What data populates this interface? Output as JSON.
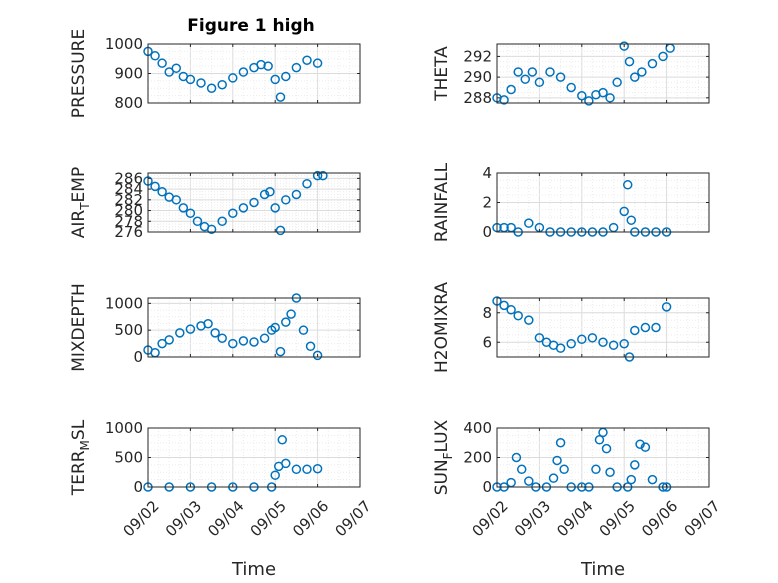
{
  "figure": {
    "title": "Figure 1 high"
  },
  "marker_color": "#0072BD",
  "chart_data": [
    {
      "type": "scatter",
      "ylabel": "PRESSURE",
      "xlabel": "",
      "ylim": [
        800,
        1000
      ],
      "yticks": [
        "800",
        "900",
        "1000"
      ],
      "grid": true,
      "show_xticks": false,
      "x": [
        "09/02 00:00",
        "09/02 04:00",
        "09/02 08:00",
        "09/02 12:00",
        "09/02 16:00",
        "09/02 20:00",
        "09/03 00:00",
        "09/03 06:00",
        "09/03 12:00",
        "09/03 18:00",
        "09/04 00:00",
        "09/04 06:00",
        "09/04 12:00",
        "09/04 16:00",
        "09/04 20:00",
        "09/05 00:00",
        "09/05 03:00",
        "09/05 06:00",
        "09/05 12:00",
        "09/05 18:00",
        "09/06 00:00"
      ],
      "y": [
        975,
        960,
        935,
        905,
        918,
        890,
        880,
        868,
        850,
        862,
        885,
        905,
        920,
        930,
        925,
        880,
        820,
        890,
        920,
        945,
        935
      ]
    },
    {
      "type": "scatter",
      "ylabel": "THETA",
      "xlabel": "",
      "ylim": [
        287.5,
        293.2
      ],
      "yticks": [
        "288",
        "290",
        "292"
      ],
      "grid": true,
      "show_xticks": false,
      "x": [
        "09/02 00:00",
        "09/02 04:00",
        "09/02 08:00",
        "09/02 12:00",
        "09/02 16:00",
        "09/02 20:00",
        "09/03 00:00",
        "09/03 06:00",
        "09/03 12:00",
        "09/03 18:00",
        "09/04 00:00",
        "09/04 04:00",
        "09/04 08:00",
        "09/04 12:00",
        "09/04 16:00",
        "09/04 20:00",
        "09/05 00:00",
        "09/05 03:00",
        "09/05 06:00",
        "09/05 10:00",
        "09/05 16:00",
        "09/05 22:00",
        "09/06 02:00"
      ],
      "y": [
        288.0,
        287.8,
        288.8,
        290.5,
        289.8,
        290.5,
        289.5,
        290.5,
        290.0,
        289.0,
        288.2,
        287.7,
        288.3,
        288.5,
        288.0,
        289.5,
        293.0,
        291.5,
        290.0,
        290.5,
        291.3,
        292.0,
        292.8
      ]
    },
    {
      "type": "scatter",
      "ylabel": "AIR_TEMP",
      "xlabel": "",
      "ylim": [
        276,
        287
      ],
      "yticks": [
        "276",
        "278",
        "280",
        "282",
        "284",
        "286"
      ],
      "grid": true,
      "show_xticks": false,
      "x": [
        "09/02 00:00",
        "09/02 04:00",
        "09/02 08:00",
        "09/02 12:00",
        "09/02 16:00",
        "09/02 20:00",
        "09/03 00:00",
        "09/03 04:00",
        "09/03 08:00",
        "09/03 12:00",
        "09/03 18:00",
        "09/04 00:00",
        "09/04 06:00",
        "09/04 12:00",
        "09/04 18:00",
        "09/04 21:00",
        "09/05 00:00",
        "09/05 03:00",
        "09/05 06:00",
        "09/05 12:00",
        "09/05 18:00",
        "09/06 00:00",
        "09/06 03:00"
      ],
      "y": [
        285.5,
        284.5,
        283.5,
        282.5,
        282.0,
        280.5,
        279.5,
        278.0,
        277.0,
        276.5,
        278.0,
        279.5,
        280.5,
        281.5,
        283.0,
        283.5,
        280.5,
        276.3,
        282.0,
        283.0,
        285.0,
        286.5,
        286.5
      ]
    },
    {
      "type": "scatter",
      "ylabel": "RAINFALL",
      "xlabel": "",
      "ylim": [
        0,
        4
      ],
      "yticks": [
        "0",
        "2",
        "4"
      ],
      "grid": true,
      "show_xticks": false,
      "x": [
        "09/02 00:00",
        "09/02 04:00",
        "09/02 08:00",
        "09/02 12:00",
        "09/02 18:00",
        "09/03 00:00",
        "09/03 06:00",
        "09/03 12:00",
        "09/03 18:00",
        "09/04 00:00",
        "09/04 06:00",
        "09/04 12:00",
        "09/04 18:00",
        "09/05 00:00",
        "09/05 02:00",
        "09/05 04:00",
        "09/05 06:00",
        "09/05 12:00",
        "09/05 18:00",
        "09/06 00:00"
      ],
      "y": [
        0.3,
        0.3,
        0.3,
        0.0,
        0.6,
        0.3,
        0.0,
        0.0,
        0.0,
        0.0,
        0.0,
        0.0,
        0.3,
        1.4,
        3.2,
        0.8,
        0.0,
        0.0,
        0.0,
        0.0
      ]
    },
    {
      "type": "scatter",
      "ylabel": "MIXDEPTH",
      "xlabel": "",
      "ylim": [
        0,
        1100
      ],
      "yticks": [
        "0",
        "500",
        "1000"
      ],
      "grid": true,
      "show_xticks": false,
      "x": [
        "09/02 00:00",
        "09/02 04:00",
        "09/02 08:00",
        "09/02 12:00",
        "09/02 18:00",
        "09/03 00:00",
        "09/03 06:00",
        "09/03 10:00",
        "09/03 14:00",
        "09/03 18:00",
        "09/04 00:00",
        "09/04 06:00",
        "09/04 12:00",
        "09/04 18:00",
        "09/04 22:00",
        "09/05 00:00",
        "09/05 03:00",
        "09/05 06:00",
        "09/05 09:00",
        "09/05 12:00",
        "09/05 16:00",
        "09/05 20:00",
        "09/06 00:00"
      ],
      "y": [
        130,
        80,
        250,
        320,
        450,
        520,
        580,
        620,
        450,
        350,
        250,
        300,
        280,
        350,
        500,
        550,
        100,
        650,
        800,
        1100,
        500,
        200,
        30
      ]
    },
    {
      "type": "scatter",
      "ylabel": "H2OMIXRA",
      "xlabel": "",
      "ylim": [
        5,
        9
      ],
      "yticks": [
        "6",
        "8"
      ],
      "grid": true,
      "show_xticks": false,
      "x": [
        "09/02 00:00",
        "09/02 04:00",
        "09/02 08:00",
        "09/02 12:00",
        "09/02 18:00",
        "09/03 00:00",
        "09/03 04:00",
        "09/03 08:00",
        "09/03 12:00",
        "09/03 18:00",
        "09/04 00:00",
        "09/04 06:00",
        "09/04 12:00",
        "09/04 18:00",
        "09/05 00:00",
        "09/05 03:00",
        "09/05 06:00",
        "09/05 12:00",
        "09/05 18:00",
        "09/06 00:00"
      ],
      "y": [
        8.8,
        8.5,
        8.2,
        7.8,
        7.5,
        6.3,
        6.0,
        5.8,
        5.6,
        5.9,
        6.2,
        6.3,
        6.0,
        5.8,
        5.9,
        5.0,
        6.8,
        7.0,
        7.0,
        8.4
      ]
    },
    {
      "type": "scatter",
      "ylabel": "TERR_MSL",
      "xlabel": "Time",
      "ylim": [
        0,
        1000
      ],
      "yticks": [
        "0",
        "500",
        "1000"
      ],
      "grid": true,
      "show_xticks": true,
      "xticks": [
        "09/02",
        "09/03",
        "09/04",
        "09/05",
        "09/06",
        "09/07"
      ],
      "x": [
        "09/02 00:00",
        "09/02 12:00",
        "09/03 00:00",
        "09/03 12:00",
        "09/04 00:00",
        "09/04 12:00",
        "09/04 22:00",
        "09/05 00:00",
        "09/05 02:00",
        "09/05 04:00",
        "09/05 06:00",
        "09/05 12:00",
        "09/05 18:00",
        "09/06 00:00"
      ],
      "y": [
        0,
        0,
        0,
        0,
        0,
        0,
        0,
        200,
        350,
        800,
        400,
        300,
        300,
        310
      ]
    },
    {
      "type": "scatter",
      "ylabel": "SUN_FLUX",
      "xlabel": "Time",
      "ylim": [
        0,
        400
      ],
      "yticks": [
        "0",
        "200",
        "400"
      ],
      "grid": true,
      "show_xticks": true,
      "xticks": [
        "09/02",
        "09/03",
        "09/04",
        "09/05",
        "09/06",
        "09/07"
      ],
      "x": [
        "09/02 00:00",
        "09/02 04:00",
        "09/02 08:00",
        "09/02 11:00",
        "09/02 14:00",
        "09/02 18:00",
        "09/02 22:00",
        "09/03 04:00",
        "09/03 08:00",
        "09/03 10:00",
        "09/03 12:00",
        "09/03 14:00",
        "09/03 18:00",
        "09/04 00:00",
        "09/04 04:00",
        "09/04 08:00",
        "09/04 10:00",
        "09/04 12:00",
        "09/04 14:00",
        "09/04 16:00",
        "09/04 20:00",
        "09/05 02:00",
        "09/05 04:00",
        "09/05 06:00",
        "09/05 09:00",
        "09/05 12:00",
        "09/05 16:00",
        "09/05 22:00",
        "09/06 00:00"
      ],
      "y": [
        0,
        0,
        30,
        200,
        120,
        40,
        0,
        0,
        60,
        180,
        300,
        120,
        0,
        0,
        0,
        120,
        320,
        370,
        260,
        100,
        0,
        0,
        50,
        150,
        290,
        270,
        50,
        0,
        0
      ]
    }
  ]
}
